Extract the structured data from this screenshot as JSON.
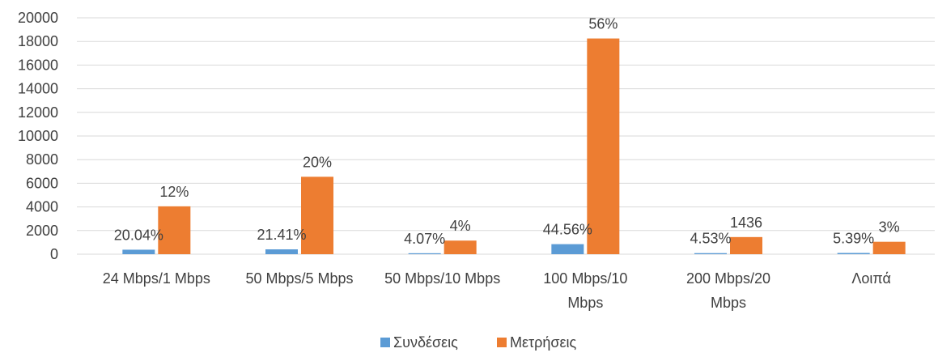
{
  "chart_data": {
    "type": "bar",
    "title": "",
    "xlabel": "",
    "ylabel": "",
    "ylim": [
      0,
      20000
    ],
    "yticks": [
      0,
      2000,
      4000,
      6000,
      8000,
      10000,
      12000,
      14000,
      16000,
      18000,
      20000
    ],
    "grid": "horizontal",
    "legend_position": "bottom",
    "categories": [
      [
        "24 Mbps/1 Mbps"
      ],
      [
        "50 Mbps/5 Mbps"
      ],
      [
        "50 Mbps/10 Mbps"
      ],
      [
        "100 Mbps/10",
        "Mbps"
      ],
      [
        "200 Mbps/20",
        "Mbps"
      ],
      [
        "Λοιπά"
      ]
    ],
    "series": [
      {
        "name": "Συνδέσεις",
        "color": "#5B9BD5",
        "values": [
          380,
          410,
          80,
          850,
          90,
          105
        ],
        "labels": [
          "20.04%",
          "21.41%",
          "4.07%",
          "44.56%",
          "4.53%",
          "5.39%"
        ]
      },
      {
        "name": "Μετρήσεις",
        "color": "#ED7D31",
        "values": [
          4050,
          6550,
          1150,
          18250,
          1450,
          1050
        ],
        "labels": [
          "12%",
          "20%",
          "4%",
          "56%",
          "1436",
          "3%"
        ]
      }
    ]
  }
}
